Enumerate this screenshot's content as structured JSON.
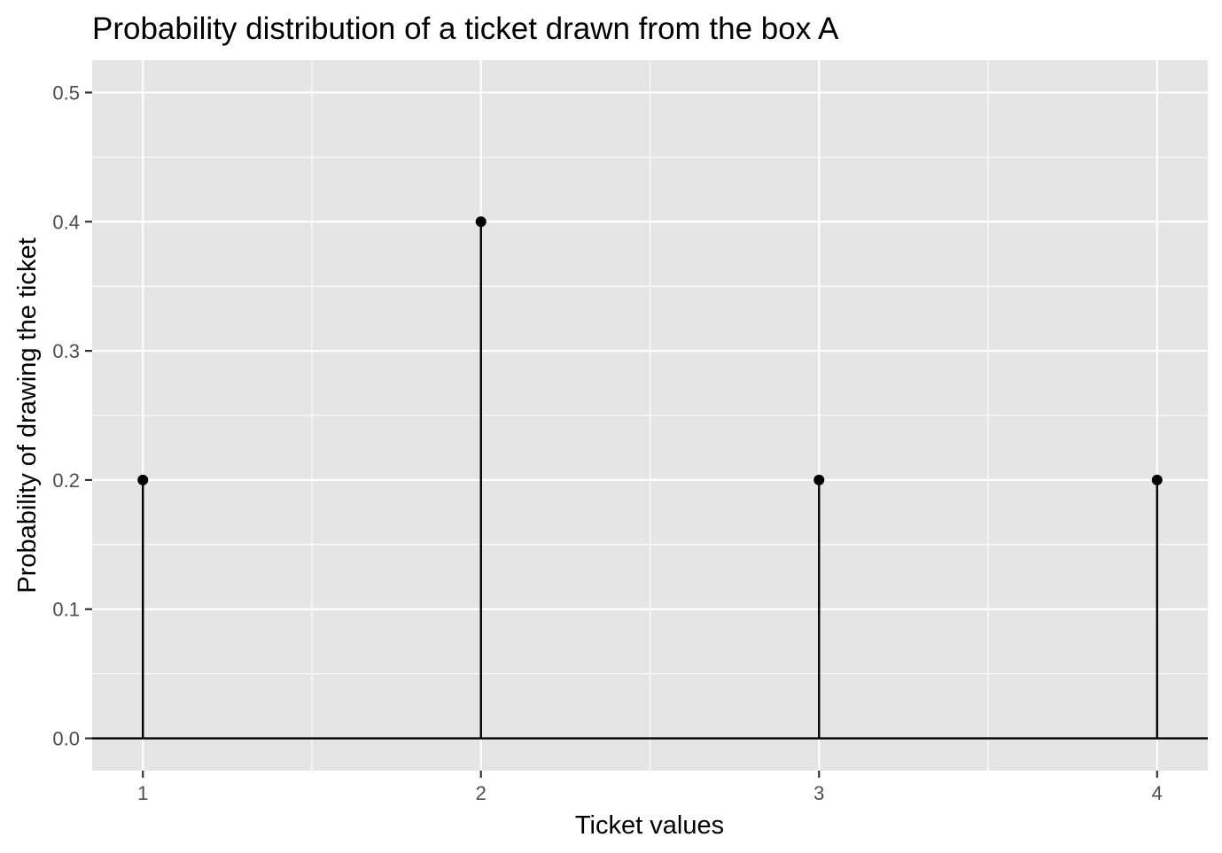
{
  "chart_data": {
    "type": "lollipop",
    "title": "Probability distribution of a ticket drawn from the box A",
    "xlabel": "Ticket values",
    "ylabel": "Probability of drawing the ticket",
    "x": [
      1,
      2,
      3,
      4
    ],
    "y": [
      0.2,
      0.4,
      0.2,
      0.2
    ],
    "xlim": [
      0.85,
      4.15
    ],
    "ylim": [
      -0.025,
      0.525
    ],
    "x_ticks": [
      1,
      2,
      3,
      4
    ],
    "x_tick_labels": [
      "1",
      "2",
      "3",
      "4"
    ],
    "y_ticks": [
      0.0,
      0.1,
      0.2,
      0.3,
      0.4,
      0.5
    ],
    "y_tick_labels": [
      "0.0",
      "0.1",
      "0.2",
      "0.3",
      "0.4",
      "0.5"
    ],
    "baseline": 0,
    "grid": true,
    "legend": "none",
    "colors": {
      "panel_background": "#e5e5e5",
      "grid": "#ffffff",
      "marks": "#000000",
      "tick_text": "#4d4d4d"
    }
  }
}
